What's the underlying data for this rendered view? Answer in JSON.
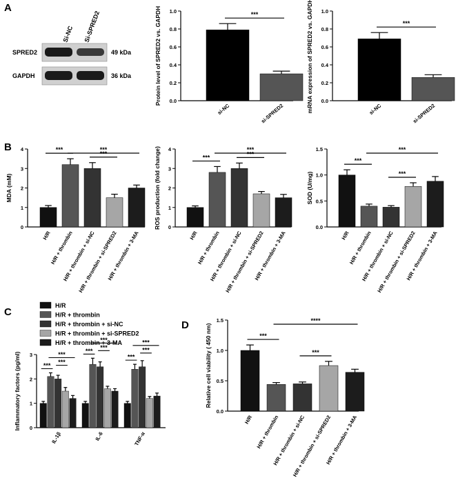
{
  "panel_labels": [
    "A",
    "B",
    "C",
    "D"
  ],
  "blot": {
    "lanes": [
      "Si-NC",
      "Si-SPRED2"
    ],
    "rows": [
      {
        "protein": "SPRED2",
        "size": "49 kDa"
      },
      {
        "protein": "GAPDH",
        "size": "36 kDa"
      }
    ]
  },
  "colors": {
    "H/R": "#111111",
    "H/R + thrombin": "#555555",
    "H/R + thrombin + si-NC": "#333333",
    "H/R + thrombin + si-SPRED2": "#a6a6a6",
    "H/R + thrombin + 3-MA": "#1c1c1c",
    "si-NC": "#000000",
    "si-SPRED2": "#555555"
  },
  "chart_data": [
    {
      "id": "A2",
      "type": "bar",
      "panel": "A",
      "categories": [
        "si-NC",
        "si-SPRED2"
      ],
      "values": [
        0.79,
        0.3
      ],
      "errors": [
        0.07,
        0.03
      ],
      "ylabel": "Protein level of SPRED2 vs. GAPDH",
      "ylim": [
        0,
        1.0
      ],
      "yticks": [
        "0.0",
        "0.2",
        "0.4",
        "0.6",
        "0.8",
        "1.0"
      ],
      "significance": [
        {
          "from": 0,
          "to": 1,
          "label": "***"
        }
      ]
    },
    {
      "id": "A3",
      "type": "bar",
      "panel": "A",
      "categories": [
        "si-NC",
        "si-SPRED2"
      ],
      "values": [
        0.69,
        0.26
      ],
      "errors": [
        0.07,
        0.03
      ],
      "ylabel": "mRNA expression of SPRED2 vs. GAPDH",
      "ylim": [
        0,
        1.0
      ],
      "yticks": [
        "0.0",
        "0.2",
        "0.4",
        "0.6",
        "0.8",
        "1.0"
      ],
      "significance": [
        {
          "from": 0,
          "to": 1,
          "label": "***"
        }
      ]
    },
    {
      "id": "B1",
      "type": "bar",
      "panel": "B",
      "categories": [
        "H/R",
        "H/R + thrombin",
        "H/R + thrombin + si-NC",
        "H/R + thrombin + si-SPRED2",
        "H/R + thrombin + 3-MA"
      ],
      "values": [
        1.0,
        3.2,
        3.0,
        1.5,
        2.0
      ],
      "errors": [
        0.1,
        0.3,
        0.3,
        0.18,
        0.15
      ],
      "ylabel": "MDA (mM)",
      "ylim": [
        0,
        4
      ],
      "yticks": [
        "0",
        "1",
        "2",
        "3",
        "4"
      ],
      "significance": [
        {
          "from": 0,
          "to": 1,
          "label": "***"
        },
        {
          "from": 1,
          "to": 4,
          "label": "***"
        },
        {
          "from": 2,
          "to": 3,
          "label": "***"
        }
      ]
    },
    {
      "id": "B2",
      "type": "bar",
      "panel": "B",
      "categories": [
        "H/R",
        "H/R + thrombin",
        "H/R + thrombin + si-NC",
        "H/R + thrombin + si-SPRED2",
        "H/R + thrombin + 3-MA"
      ],
      "values": [
        1.0,
        2.8,
        3.0,
        1.7,
        1.5
      ],
      "errors": [
        0.08,
        0.3,
        0.28,
        0.12,
        0.17
      ],
      "ylabel": "ROS production (fold change)",
      "ylim": [
        0,
        4
      ],
      "yticks": [
        "0",
        "1",
        "2",
        "3",
        "4"
      ],
      "significance": [
        {
          "from": 0,
          "to": 1,
          "label": "***"
        },
        {
          "from": 1,
          "to": 4,
          "label": "***"
        },
        {
          "from": 2,
          "to": 3,
          "label": "***"
        }
      ]
    },
    {
      "id": "B3",
      "type": "bar",
      "panel": "B",
      "categories": [
        "H/R",
        "H/R + thrombin",
        "H/R + thrombin + si-NC",
        "H/R + thrombin + si-SPRED2",
        "H/R + thrombin + 3-MA"
      ],
      "values": [
        1.0,
        0.4,
        0.38,
        0.78,
        0.88
      ],
      "errors": [
        0.1,
        0.04,
        0.03,
        0.07,
        0.09
      ],
      "ylabel": "SOD (U/mg)",
      "ylim": [
        0,
        1.5
      ],
      "yticks": [
        "0.0",
        "0.5",
        "1.0",
        "1.5"
      ],
      "significance": [
        {
          "from": 0,
          "to": 1,
          "label": "***"
        },
        {
          "from": 1,
          "to": 4,
          "label": "***"
        },
        {
          "from": 2,
          "to": 3,
          "label": "***"
        }
      ]
    },
    {
      "id": "C",
      "type": "bar",
      "panel": "C",
      "grouped": true,
      "categories": [
        "IL-1β",
        "IL-6",
        "TNF-α"
      ],
      "series": [
        {
          "name": "H/R",
          "values": [
            1.0,
            1.0,
            1.0
          ],
          "errors": [
            0.08,
            0.08,
            0.08
          ]
        },
        {
          "name": "H/R + thrombin",
          "values": [
            2.1,
            2.6,
            2.4
          ],
          "errors": [
            0.15,
            0.25,
            0.2
          ]
        },
        {
          "name": "H/R + thrombin + si-NC",
          "values": [
            2.0,
            2.5,
            2.5
          ],
          "errors": [
            0.15,
            0.2,
            0.25
          ]
        },
        {
          "name": "H/R + thrombin + si-SPRED2",
          "values": [
            1.5,
            1.6,
            1.2
          ],
          "errors": [
            0.15,
            0.1,
            0.08
          ]
        },
        {
          "name": "H/R + thrombin + 3-MA",
          "values": [
            1.2,
            1.5,
            1.3
          ],
          "errors": [
            0.12,
            0.1,
            0.12
          ]
        }
      ],
      "ylabel": "Inflammatory factors (pg/ml)",
      "ylim": [
        0,
        3
      ],
      "yticks": [
        "0",
        "1",
        "2",
        "3"
      ],
      "significance_label": "***"
    },
    {
      "id": "D",
      "type": "bar",
      "panel": "D",
      "categories": [
        "H/R",
        "H/R + thrombin",
        "H/R + thrombin + si-NC",
        "H/R + thrombin + si-SPRED2",
        "H/R + thrombin + 3-MA"
      ],
      "values": [
        1.0,
        0.44,
        0.45,
        0.75,
        0.64
      ],
      "errors": [
        0.09,
        0.03,
        0.03,
        0.07,
        0.05
      ],
      "ylabel": "Relative cell viability ( 450 nm)",
      "ylim": [
        0,
        1.5
      ],
      "yticks": [
        "0.0",
        "0.5",
        "1.0",
        "1.5"
      ],
      "significance": [
        {
          "from": 0,
          "to": 1,
          "label": "***"
        },
        {
          "from": 1,
          "to": 4,
          "label": "****"
        },
        {
          "from": 2,
          "to": 3,
          "label": "***"
        }
      ]
    }
  ]
}
